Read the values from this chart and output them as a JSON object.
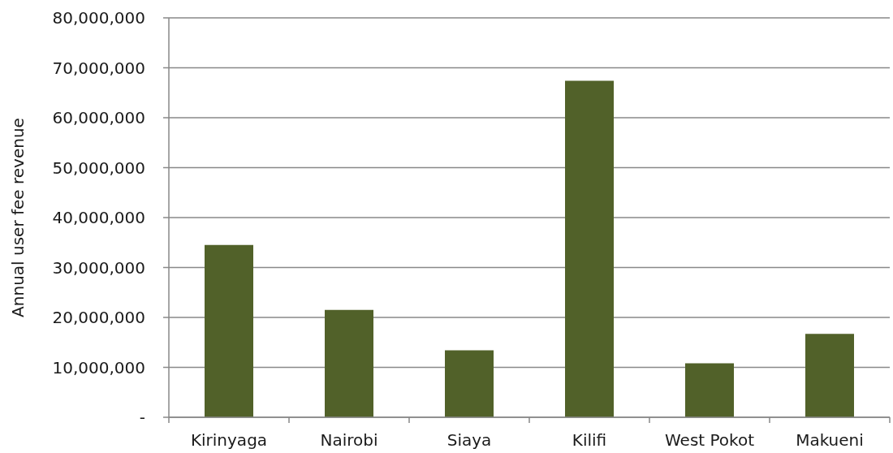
{
  "chart_data": {
    "type": "bar",
    "ylabel": "Annual user fee revenue",
    "categories": [
      "Kirinyaga",
      "Nairobi",
      "Siaya",
      "Kilifi",
      "West Pokot",
      "Makueni"
    ],
    "values": [
      34500000,
      21500000,
      13400000,
      67400000,
      10800000,
      16700000
    ],
    "color": "#516129",
    "ylim": [
      0,
      80000000
    ],
    "yticks": [
      {
        "value": 0,
        "label": "-"
      },
      {
        "value": 10000000,
        "label": "10,000,000"
      },
      {
        "value": 20000000,
        "label": "20,000,000"
      },
      {
        "value": 30000000,
        "label": "30,000,000"
      },
      {
        "value": 40000000,
        "label": "40,000,000"
      },
      {
        "value": 50000000,
        "label": "50,000,000"
      },
      {
        "value": 60000000,
        "label": "60,000,000"
      },
      {
        "value": 70000000,
        "label": "70,000,000"
      },
      {
        "value": 80000000,
        "label": "80,000,000"
      }
    ],
    "grid": "y"
  }
}
